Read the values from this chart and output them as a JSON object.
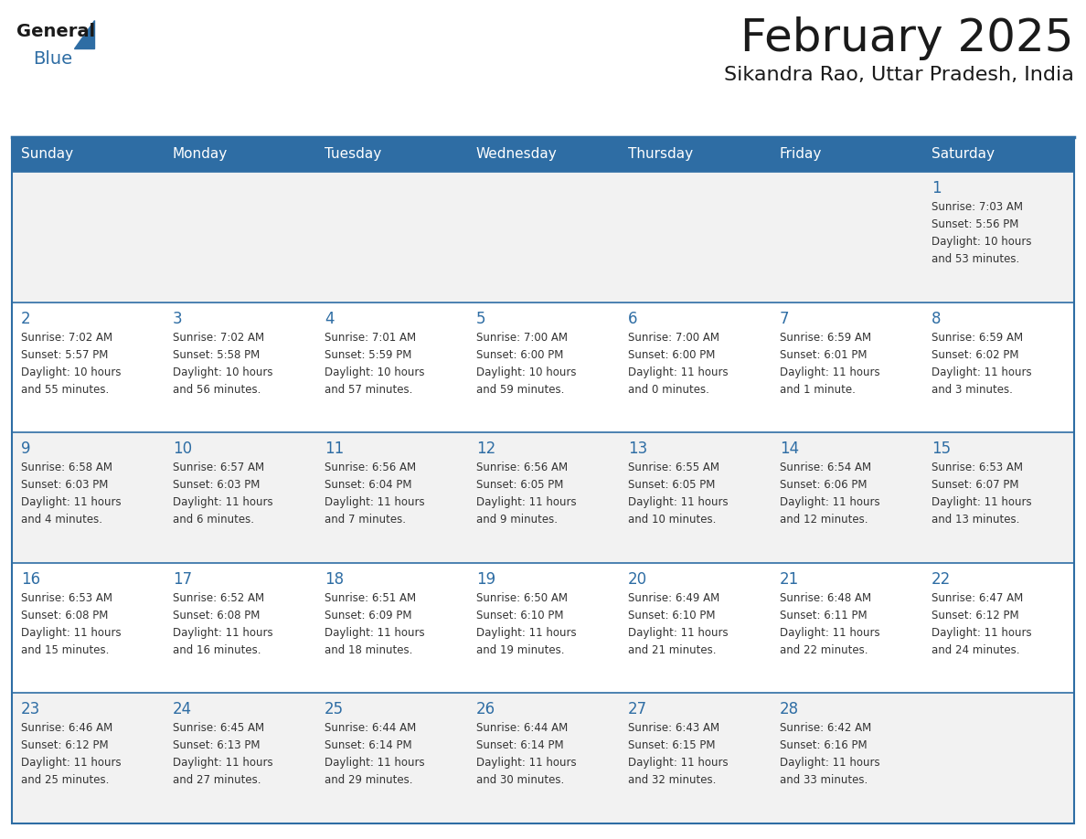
{
  "title": "February 2025",
  "subtitle": "Sikandra Rao, Uttar Pradesh, India",
  "header_bg": "#2E6DA4",
  "header_text_color": "#FFFFFF",
  "cell_bg_light": "#F2F2F2",
  "cell_bg_white": "#FFFFFF",
  "day_number_color": "#2E6DA4",
  "body_text_color": "#333333",
  "border_color": "#2E6DA4",
  "days_of_week": [
    "Sunday",
    "Monday",
    "Tuesday",
    "Wednesday",
    "Thursday",
    "Friday",
    "Saturday"
  ],
  "calendar": [
    [
      null,
      null,
      null,
      null,
      null,
      null,
      {
        "day": 1,
        "sunrise": "7:03 AM",
        "sunset": "5:56 PM",
        "daylight": "10 hours\nand 53 minutes."
      }
    ],
    [
      {
        "day": 2,
        "sunrise": "7:02 AM",
        "sunset": "5:57 PM",
        "daylight": "10 hours\nand 55 minutes."
      },
      {
        "day": 3,
        "sunrise": "7:02 AM",
        "sunset": "5:58 PM",
        "daylight": "10 hours\nand 56 minutes."
      },
      {
        "day": 4,
        "sunrise": "7:01 AM",
        "sunset": "5:59 PM",
        "daylight": "10 hours\nand 57 minutes."
      },
      {
        "day": 5,
        "sunrise": "7:00 AM",
        "sunset": "6:00 PM",
        "daylight": "10 hours\nand 59 minutes."
      },
      {
        "day": 6,
        "sunrise": "7:00 AM",
        "sunset": "6:00 PM",
        "daylight": "11 hours\nand 0 minutes."
      },
      {
        "day": 7,
        "sunrise": "6:59 AM",
        "sunset": "6:01 PM",
        "daylight": "11 hours\nand 1 minute."
      },
      {
        "day": 8,
        "sunrise": "6:59 AM",
        "sunset": "6:02 PM",
        "daylight": "11 hours\nand 3 minutes."
      }
    ],
    [
      {
        "day": 9,
        "sunrise": "6:58 AM",
        "sunset": "6:03 PM",
        "daylight": "11 hours\nand 4 minutes."
      },
      {
        "day": 10,
        "sunrise": "6:57 AM",
        "sunset": "6:03 PM",
        "daylight": "11 hours\nand 6 minutes."
      },
      {
        "day": 11,
        "sunrise": "6:56 AM",
        "sunset": "6:04 PM",
        "daylight": "11 hours\nand 7 minutes."
      },
      {
        "day": 12,
        "sunrise": "6:56 AM",
        "sunset": "6:05 PM",
        "daylight": "11 hours\nand 9 minutes."
      },
      {
        "day": 13,
        "sunrise": "6:55 AM",
        "sunset": "6:05 PM",
        "daylight": "11 hours\nand 10 minutes."
      },
      {
        "day": 14,
        "sunrise": "6:54 AM",
        "sunset": "6:06 PM",
        "daylight": "11 hours\nand 12 minutes."
      },
      {
        "day": 15,
        "sunrise": "6:53 AM",
        "sunset": "6:07 PM",
        "daylight": "11 hours\nand 13 minutes."
      }
    ],
    [
      {
        "day": 16,
        "sunrise": "6:53 AM",
        "sunset": "6:08 PM",
        "daylight": "11 hours\nand 15 minutes."
      },
      {
        "day": 17,
        "sunrise": "6:52 AM",
        "sunset": "6:08 PM",
        "daylight": "11 hours\nand 16 minutes."
      },
      {
        "day": 18,
        "sunrise": "6:51 AM",
        "sunset": "6:09 PM",
        "daylight": "11 hours\nand 18 minutes."
      },
      {
        "day": 19,
        "sunrise": "6:50 AM",
        "sunset": "6:10 PM",
        "daylight": "11 hours\nand 19 minutes."
      },
      {
        "day": 20,
        "sunrise": "6:49 AM",
        "sunset": "6:10 PM",
        "daylight": "11 hours\nand 21 minutes."
      },
      {
        "day": 21,
        "sunrise": "6:48 AM",
        "sunset": "6:11 PM",
        "daylight": "11 hours\nand 22 minutes."
      },
      {
        "day": 22,
        "sunrise": "6:47 AM",
        "sunset": "6:12 PM",
        "daylight": "11 hours\nand 24 minutes."
      }
    ],
    [
      {
        "day": 23,
        "sunrise": "6:46 AM",
        "sunset": "6:12 PM",
        "daylight": "11 hours\nand 25 minutes."
      },
      {
        "day": 24,
        "sunrise": "6:45 AM",
        "sunset": "6:13 PM",
        "daylight": "11 hours\nand 27 minutes."
      },
      {
        "day": 25,
        "sunrise": "6:44 AM",
        "sunset": "6:14 PM",
        "daylight": "11 hours\nand 29 minutes."
      },
      {
        "day": 26,
        "sunrise": "6:44 AM",
        "sunset": "6:14 PM",
        "daylight": "11 hours\nand 30 minutes."
      },
      {
        "day": 27,
        "sunrise": "6:43 AM",
        "sunset": "6:15 PM",
        "daylight": "11 hours\nand 32 minutes."
      },
      {
        "day": 28,
        "sunrise": "6:42 AM",
        "sunset": "6:16 PM",
        "daylight": "11 hours\nand 33 minutes."
      },
      null
    ]
  ]
}
